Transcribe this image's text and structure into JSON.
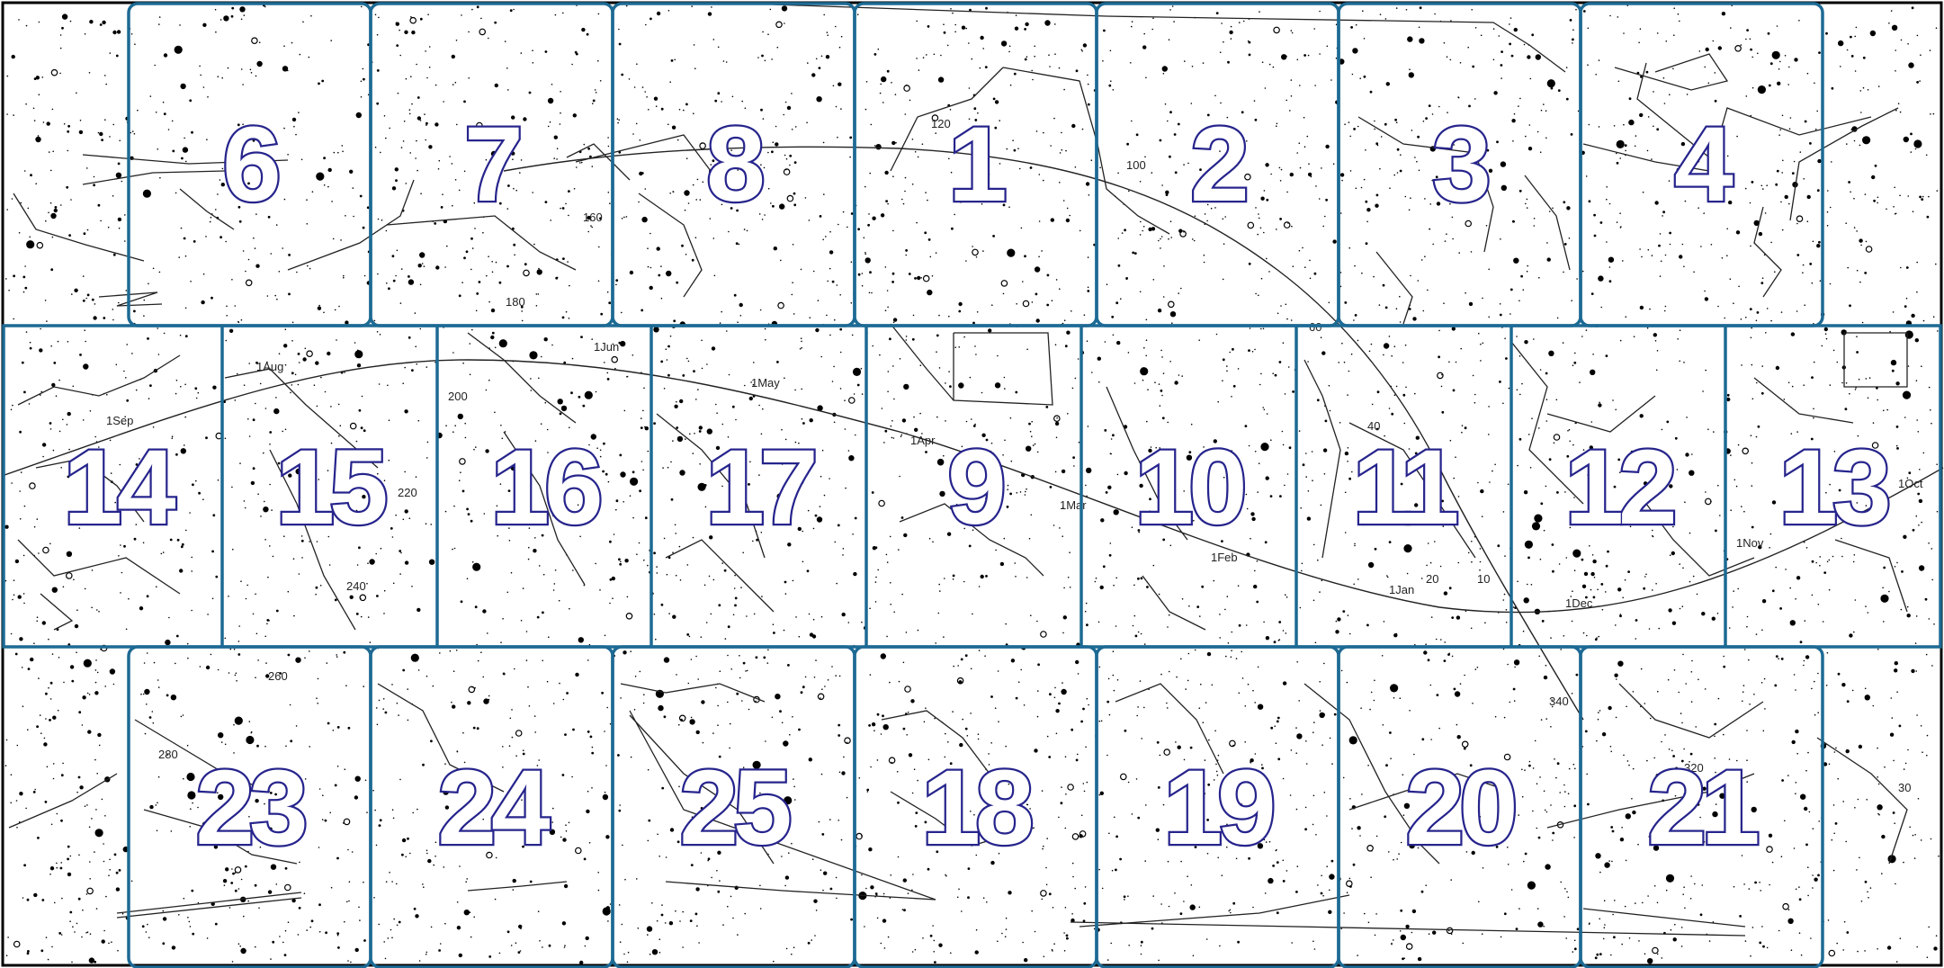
{
  "map": {
    "row1_panels": [
      {
        "number": "6"
      },
      {
        "number": "7"
      },
      {
        "number": "8"
      },
      {
        "number": "1"
      },
      {
        "number": "2"
      },
      {
        "number": "3"
      },
      {
        "number": "4"
      }
    ],
    "row2_panels": [
      {
        "number": "14"
      },
      {
        "number": "15"
      },
      {
        "number": "16"
      },
      {
        "number": "17"
      },
      {
        "number": "9"
      },
      {
        "number": "10"
      },
      {
        "number": "11"
      },
      {
        "number": "12"
      },
      {
        "number": "13"
      }
    ],
    "row3_panels": [
      {
        "number": "23"
      },
      {
        "number": "24"
      },
      {
        "number": "25"
      },
      {
        "number": "18"
      },
      {
        "number": "19"
      },
      {
        "number": "20"
      },
      {
        "number": "21"
      }
    ],
    "ecliptic_labels": {
      "ra_120": "120",
      "ra_100": "100",
      "ra_160": "160",
      "ra_180": "180",
      "ra_200": "200",
      "ra_220": "220",
      "ra_240": "240",
      "ra_260": "260",
      "ra_280": "280",
      "ra_320": "320",
      "ra_340": "340",
      "ra_40": "40",
      "ra_10": "10",
      "ra_20": "20",
      "ra_30": "30",
      "date_sep": "1Sep",
      "date_aug": "1Aug",
      "date_jun": "1Jun",
      "date_may": "1May",
      "date_apr": "1Apr",
      "date_mar": "1Mar",
      "date_feb": "1Feb",
      "date_jan": "1Jan",
      "date_dec": "1Dec",
      "date_nov": "1Nov",
      "date_oct": "1Oct"
    },
    "colors": {
      "panel_border": "#1d6a94",
      "number_outline": "#26248c",
      "stars": "#000000"
    }
  }
}
